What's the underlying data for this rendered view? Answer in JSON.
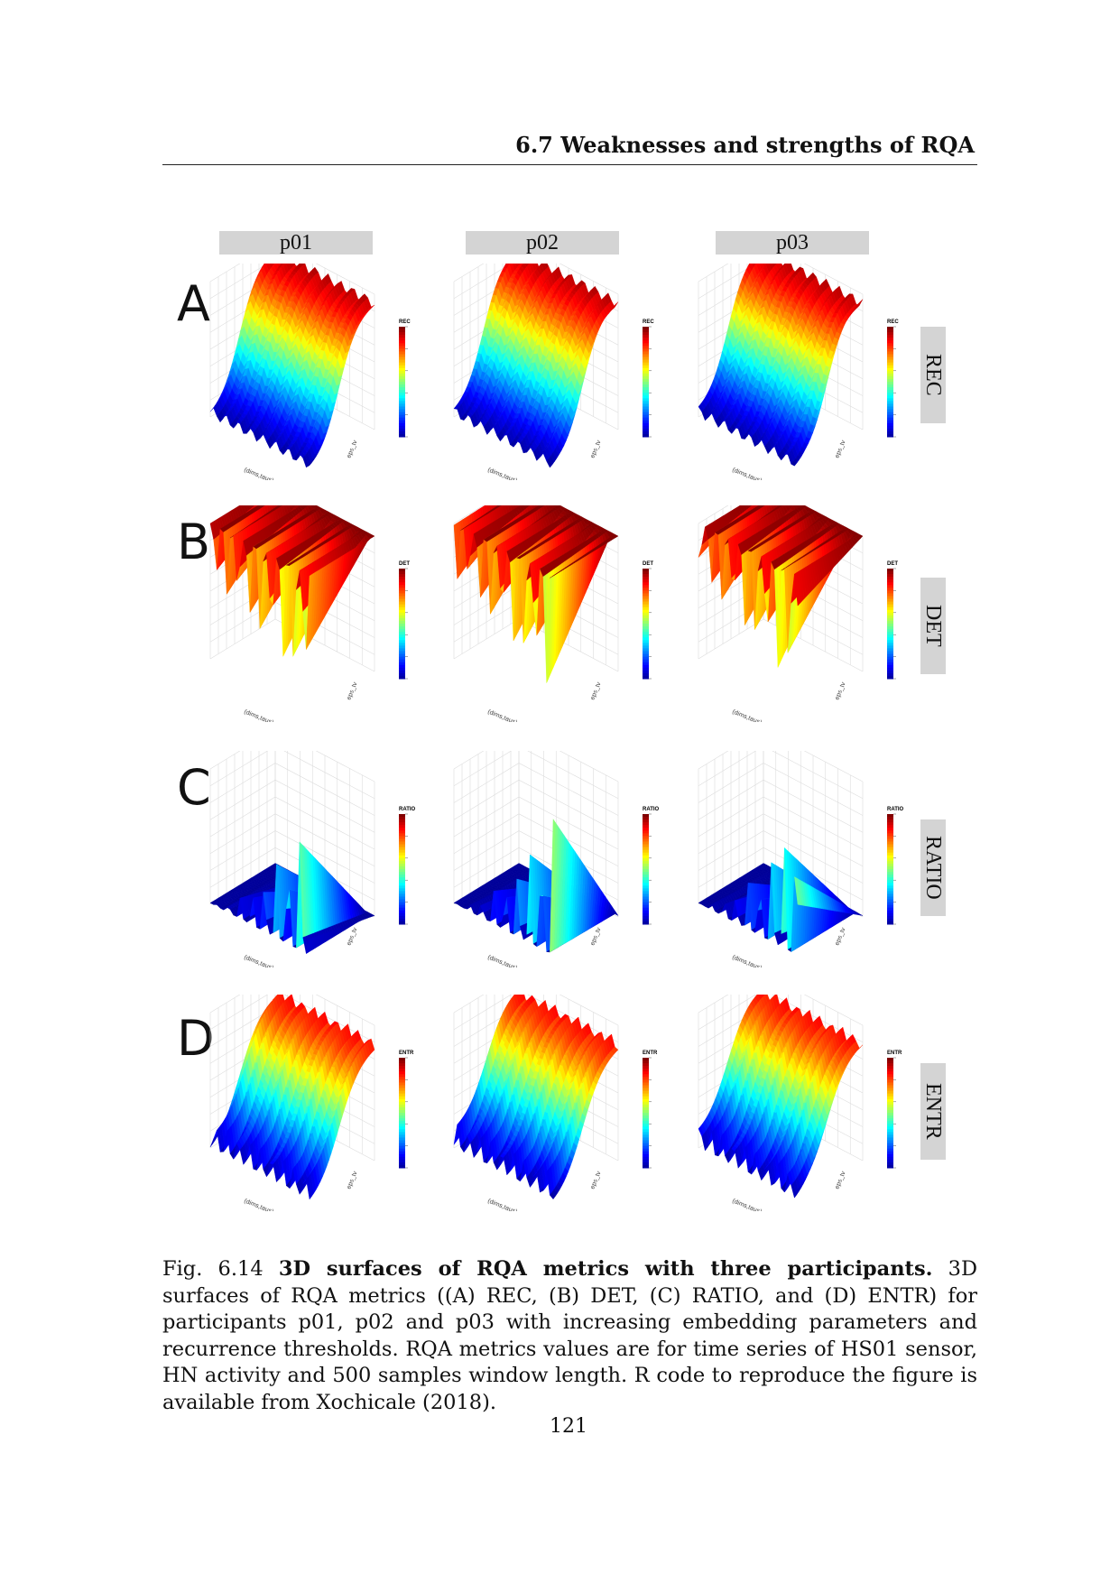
{
  "header": {
    "running_title": "6.7 Weaknesses and strengths of RQA"
  },
  "figure": {
    "columns": [
      {
        "label": "p01"
      },
      {
        "label": "p02"
      },
      {
        "label": "p03"
      }
    ],
    "rows": [
      {
        "letter": "A",
        "metric": "REC",
        "legend_title": "REC",
        "shape": "rec"
      },
      {
        "letter": "B",
        "metric": "DET",
        "legend_title": "DET",
        "shape": "det"
      },
      {
        "letter": "C",
        "metric": "RATIO",
        "legend_title": "RATIO",
        "shape": "ratio"
      },
      {
        "letter": "D",
        "metric": "ENTR",
        "legend_title": "ENTR",
        "shape": "entr"
      }
    ],
    "axis_labels": {
      "x": "(dims,taus)",
      "y": "eps_tv"
    },
    "colormap": [
      "#00008f",
      "#0000ff",
      "#0080ff",
      "#00ffff",
      "#80ff80",
      "#ffff00",
      "#ff8000",
      "#ff0000",
      "#800000"
    ]
  },
  "caption": {
    "prefix": "Fig. 6.14",
    "bold_title": "3D surfaces of RQA metrics with three participants.",
    "text": "3D surfaces of RQA metrics ((A) REC, (B) DET, (C) RATIO, and (D) ENTR) for participants p01, p02 and p03 with increasing embedding parameters and recurrence thresholds. RQA metrics values are for time series of HS01 sensor, HN activity and 500 samples window length. R code to reproduce the figure is available from Xochicale (2018)."
  },
  "page": {
    "number": "121"
  }
}
